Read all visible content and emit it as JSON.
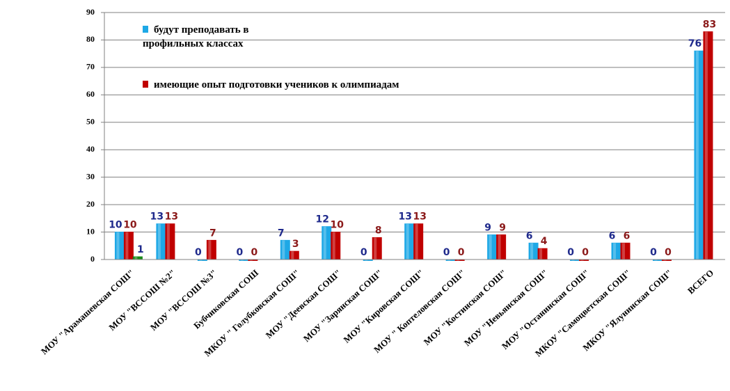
{
  "chart_data": {
    "type": "bar",
    "categories": [
      "МОУ \"Арамашевская СОШ\"",
      "МОУ \"ВССОШ №2\"",
      "МОУ \"ВССОШ №3\"",
      "Бубчиковская СОШ",
      "МКОУ \" Голубковская СОШ\"",
      "МОУ \"Деевская СОШ\"",
      "МОУ \"Зарянская СОШ\"",
      "МОУ \"Кировская СОШ\"",
      "МОУ \" Коптеловская СОШ\"",
      "МОУ \"Костинская СОШ\"",
      "МОУ \"Невьянская СОШ\"",
      "МОУ \"Останинская СОШ\"",
      "МКОУ \"Самоцветская СОШ\"",
      "МКОУ \"Ялунинская СОШ\"",
      "ВСЕГО"
    ],
    "series": [
      {
        "name": "будут преподавать в профильных классах",
        "color": "#1ea8e6",
        "label_color": "#1f2a8c",
        "values": [
          10,
          13,
          0,
          0,
          7,
          12,
          0,
          13,
          0,
          9,
          6,
          0,
          6,
          0,
          76
        ]
      },
      {
        "name": "имеющие опыт подготовки учеников к олимпиадам",
        "color": "#c00000",
        "label_color": "#8b1a1a",
        "values": [
          10,
          13,
          7,
          0,
          3,
          10,
          8,
          13,
          0,
          9,
          4,
          0,
          6,
          0,
          83
        ]
      },
      {
        "color": "#1a8a1a",
        "label_color": "#1f2a8c",
        "values": [
          1,
          null,
          null,
          null,
          null,
          null,
          null,
          null,
          null,
          null,
          null,
          null,
          null,
          null,
          null
        ]
      }
    ],
    "ylim": [
      0,
      90
    ],
    "yticks": [
      0,
      10,
      20,
      30,
      40,
      50,
      60,
      70,
      80,
      90
    ],
    "grid": true
  }
}
